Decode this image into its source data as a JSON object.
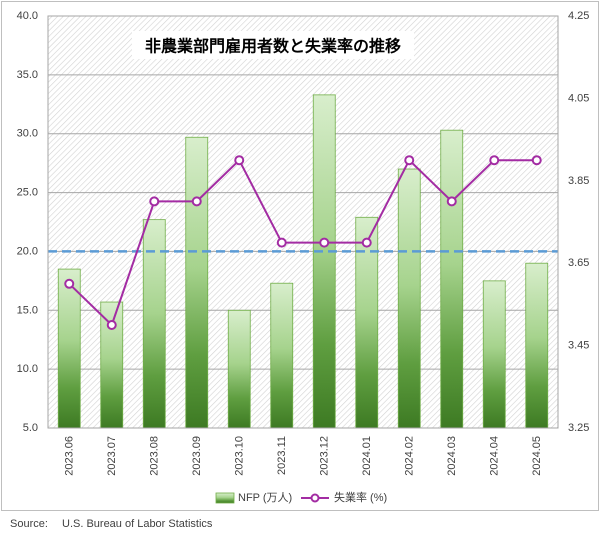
{
  "chart_data": {
    "type": "bar",
    "title": "非農業部門雇用者数と失業率の推移",
    "categories": [
      "2023.06",
      "2023.07",
      "2023.08",
      "2023.09",
      "2023.10",
      "2023.11",
      "2023.12",
      "2024.01",
      "2024.02",
      "2024.03",
      "2024.04",
      "2024.05"
    ],
    "series": [
      {
        "name": "NFP (万人)",
        "type": "bar",
        "axis": "left",
        "color": "#70ad47",
        "values": [
          18.5,
          15.7,
          22.7,
          29.7,
          15.0,
          17.3,
          33.3,
          22.9,
          27.0,
          30.3,
          17.5,
          19.0
        ]
      },
      {
        "name": "失業率 (%)",
        "type": "line",
        "axis": "right",
        "color": "#a32ca3",
        "values": [
          3.6,
          3.5,
          3.8,
          3.8,
          3.9,
          3.7,
          3.7,
          3.7,
          3.9,
          3.8,
          3.9,
          3.9
        ]
      }
    ],
    "ylim": [
      5,
      40
    ],
    "y_ticks": [
      "5.0",
      "10.0",
      "15.0",
      "20.0",
      "25.0",
      "30.0",
      "35.0",
      "40.0"
    ],
    "y2lim": [
      3.25,
      4.25
    ],
    "y2_ticks": [
      "3.25",
      "3.45",
      "3.65",
      "3.85",
      "4.05",
      "4.25"
    ],
    "reference_line": {
      "value": 20.0,
      "style": "dashed",
      "color": "#5b9bd5"
    },
    "grid": true,
    "legend": "bottom"
  },
  "source": {
    "label": "Source:",
    "text": "U.S. Bureau of Labor Statistics"
  }
}
